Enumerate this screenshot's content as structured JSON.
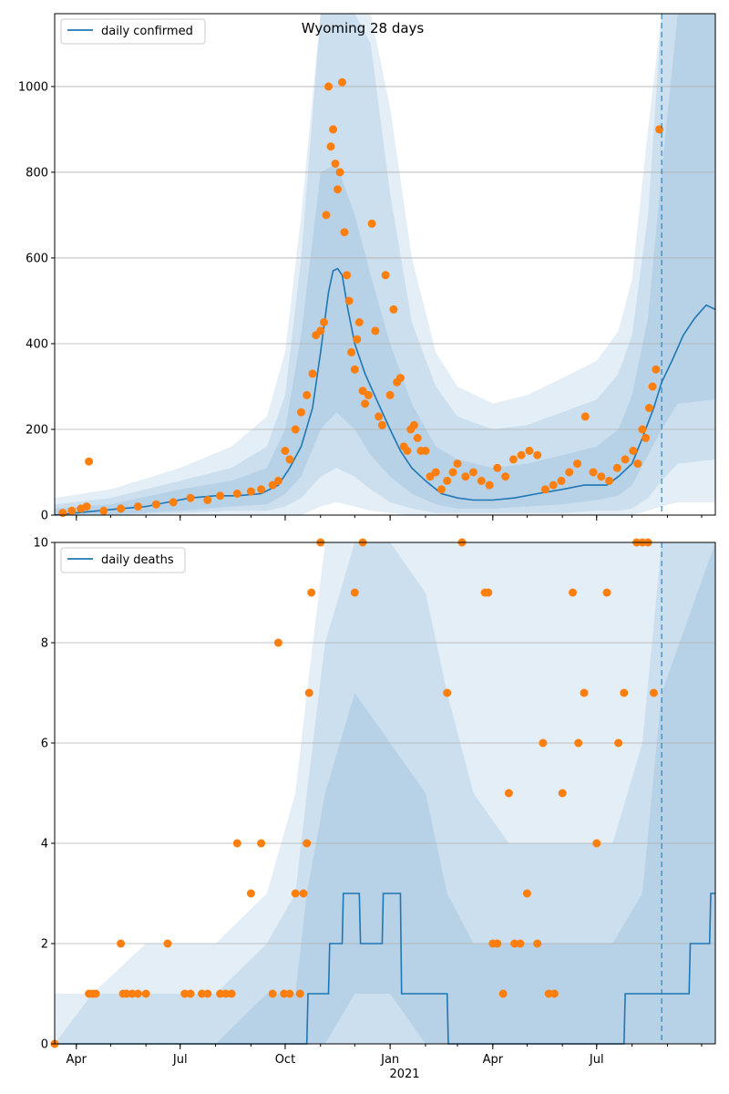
{
  "figure": {
    "title": "Wyoming 28 days",
    "year_label": "2021",
    "colors": {
      "line": "#1f77b4",
      "points": "#ff7f0e",
      "band": "#1f77b4",
      "grid": "#b0b0b0",
      "axis": "#000000"
    }
  },
  "chart_data": [
    {
      "type": "line",
      "panel": "top",
      "legend": "daily confirmed",
      "legend_position": "upper left",
      "grid": "horizontal",
      "x_axis": {
        "type": "date",
        "range": [
          "2020-03-13",
          "2021-10-13"
        ],
        "ticks": [
          "2020-04-01",
          "2020-07-01",
          "2020-10-01",
          "2021-01-01",
          "2021-04-01",
          "2021-07-01"
        ],
        "tick_labels": [
          "Apr",
          "Jul",
          "Oct",
          "Jan",
          "Apr",
          "Jul"
        ],
        "tick_labels_visible": false
      },
      "ylim": [
        0,
        1170
      ],
      "yticks": [
        0,
        200,
        400,
        600,
        800,
        1000
      ],
      "forecast_start": "2021-08-27",
      "series": [
        {
          "name": "daily confirmed",
          "x": [
            "2020-03-13",
            "2020-04-01",
            "2020-04-20",
            "2020-05-10",
            "2020-06-01",
            "2020-06-20",
            "2020-07-10",
            "2020-08-01",
            "2020-08-20",
            "2020-09-10",
            "2020-09-25",
            "2020-10-05",
            "2020-10-15",
            "2020-10-25",
            "2020-11-01",
            "2020-11-08",
            "2020-11-12",
            "2020-11-16",
            "2020-11-20",
            "2020-11-25",
            "2020-12-01",
            "2020-12-10",
            "2020-12-20",
            "2021-01-01",
            "2021-01-10",
            "2021-01-20",
            "2021-02-01",
            "2021-02-15",
            "2021-03-01",
            "2021-03-15",
            "2021-04-01",
            "2021-04-20",
            "2021-05-10",
            "2021-06-01",
            "2021-06-20",
            "2021-07-10",
            "2021-07-20",
            "2021-08-01",
            "2021-08-10",
            "2021-08-20",
            "2021-08-27",
            "2021-09-05",
            "2021-09-15",
            "2021-09-25",
            "2021-10-05",
            "2021-10-13"
          ],
          "y": [
            0,
            5,
            10,
            15,
            20,
            30,
            40,
            45,
            45,
            50,
            70,
            110,
            160,
            250,
            380,
            520,
            570,
            575,
            560,
            480,
            400,
            330,
            270,
            200,
            150,
            110,
            80,
            50,
            40,
            35,
            35,
            40,
            50,
            60,
            70,
            70,
            90,
            120,
            180,
            250,
            310,
            360,
            420,
            460,
            490,
            480
          ]
        }
      ],
      "bands": [
        {
          "label": "widest",
          "x": [
            "2020-03-13",
            "2020-05-01",
            "2020-07-01",
            "2020-08-15",
            "2020-09-15",
            "2020-10-01",
            "2020-10-15",
            "2020-11-01",
            "2020-11-15",
            "2020-12-01",
            "2020-12-15",
            "2021-01-01",
            "2021-01-20",
            "2021-02-10",
            "2021-03-01",
            "2021-04-01",
            "2021-05-01",
            "2021-06-01",
            "2021-07-01",
            "2021-07-20",
            "2021-08-01",
            "2021-08-15",
            "2021-08-27",
            "2021-09-10",
            "2021-10-13"
          ],
          "low": [
            0,
            0,
            0,
            0,
            0,
            0,
            0,
            20,
            30,
            20,
            10,
            5,
            0,
            0,
            0,
            0,
            0,
            0,
            0,
            0,
            0,
            10,
            20,
            30,
            30
          ],
          "high": [
            40,
            60,
            110,
            160,
            230,
            380,
            700,
            1170,
            1170,
            1170,
            1170,
            950,
            600,
            380,
            300,
            260,
            280,
            320,
            360,
            430,
            550,
            900,
            1170,
            1170,
            1170
          ]
        },
        {
          "label": "wide",
          "x": [
            "2020-03-13",
            "2020-05-01",
            "2020-07-01",
            "2020-08-15",
            "2020-09-15",
            "2020-10-01",
            "2020-10-15",
            "2020-11-01",
            "2020-11-15",
            "2020-12-01",
            "2020-12-15",
            "2021-01-01",
            "2021-01-20",
            "2021-02-10",
            "2021-03-01",
            "2021-04-01",
            "2021-05-01",
            "2021-06-01",
            "2021-07-01",
            "2021-07-20",
            "2021-08-01",
            "2021-08-15",
            "2021-08-27",
            "2021-09-10",
            "2021-10-13"
          ],
          "low": [
            0,
            0,
            5,
            10,
            10,
            20,
            40,
            90,
            110,
            90,
            60,
            30,
            15,
            5,
            5,
            5,
            5,
            5,
            10,
            10,
            15,
            40,
            80,
            120,
            130
          ],
          "high": [
            25,
            40,
            80,
            110,
            160,
            280,
            600,
            1170,
            1170,
            1170,
            1100,
            750,
            450,
            300,
            230,
            200,
            210,
            240,
            270,
            330,
            420,
            700,
            1170,
            1170,
            1170
          ]
        },
        {
          "label": "inner",
          "x": [
            "2020-03-13",
            "2020-05-01",
            "2020-07-01",
            "2020-08-15",
            "2020-09-15",
            "2020-10-01",
            "2020-10-15",
            "2020-11-01",
            "2020-11-15",
            "2020-12-01",
            "2020-12-15",
            "2021-01-01",
            "2021-01-20",
            "2021-02-10",
            "2021-03-01",
            "2021-04-01",
            "2021-05-01",
            "2021-06-01",
            "2021-07-01",
            "2021-07-20",
            "2021-08-01",
            "2021-08-15",
            "2021-08-27",
            "2021-09-10",
            "2021-10-13"
          ],
          "low": [
            0,
            2,
            10,
            20,
            25,
            50,
            90,
            200,
            240,
            200,
            140,
            90,
            50,
            25,
            15,
            15,
            20,
            25,
            35,
            45,
            70,
            140,
            200,
            260,
            270
          ],
          "high": [
            15,
            25,
            60,
            80,
            110,
            200,
            420,
            800,
            820,
            700,
            560,
            400,
            260,
            160,
            130,
            110,
            120,
            140,
            160,
            200,
            280,
            460,
            800,
            1170,
            1170
          ]
        }
      ],
      "scatter": {
        "x": [
          "2020-03-20",
          "2020-03-28",
          "2020-04-05",
          "2020-04-10",
          "2020-04-12",
          "2020-04-25",
          "2020-05-10",
          "2020-05-25",
          "2020-06-10",
          "2020-06-25",
          "2020-07-10",
          "2020-07-25",
          "2020-08-05",
          "2020-08-20",
          "2020-09-01",
          "2020-09-10",
          "2020-09-20",
          "2020-09-25",
          "2020-10-01",
          "2020-10-05",
          "2020-10-10",
          "2020-10-15",
          "2020-10-20",
          "2020-10-25",
          "2020-10-28",
          "2020-11-01",
          "2020-11-04",
          "2020-11-06",
          "2020-11-08",
          "2020-11-10",
          "2020-11-12",
          "2020-11-14",
          "2020-11-16",
          "2020-11-18",
          "2020-11-20",
          "2020-11-22",
          "2020-11-24",
          "2020-11-26",
          "2020-11-28",
          "2020-12-01",
          "2020-12-03",
          "2020-12-05",
          "2020-12-08",
          "2020-12-10",
          "2020-12-13",
          "2020-12-16",
          "2020-12-19",
          "2020-12-22",
          "2020-12-25",
          "2020-12-28",
          "2021-01-01",
          "2021-01-04",
          "2021-01-07",
          "2021-01-10",
          "2021-01-13",
          "2021-01-16",
          "2021-01-19",
          "2021-01-22",
          "2021-01-25",
          "2021-01-28",
          "2021-02-01",
          "2021-02-05",
          "2021-02-10",
          "2021-02-15",
          "2021-02-20",
          "2021-02-25",
          "2021-03-01",
          "2021-03-08",
          "2021-03-15",
          "2021-03-22",
          "2021-03-29",
          "2021-04-05",
          "2021-04-12",
          "2021-04-19",
          "2021-04-26",
          "2021-05-03",
          "2021-05-10",
          "2021-05-17",
          "2021-05-24",
          "2021-05-31",
          "2021-06-07",
          "2021-06-14",
          "2021-06-21",
          "2021-06-28",
          "2021-07-05",
          "2021-07-12",
          "2021-07-19",
          "2021-07-26",
          "2021-08-02",
          "2021-08-06",
          "2021-08-10",
          "2021-08-13",
          "2021-08-16",
          "2021-08-19",
          "2021-08-22",
          "2021-08-25"
        ],
        "y": [
          5,
          10,
          15,
          20,
          125,
          10,
          15,
          20,
          25,
          30,
          40,
          35,
          45,
          50,
          55,
          60,
          70,
          80,
          150,
          130,
          200,
          240,
          280,
          330,
          420,
          430,
          450,
          700,
          1000,
          860,
          900,
          820,
          760,
          800,
          1010,
          660,
          560,
          500,
          380,
          340,
          410,
          450,
          290,
          260,
          280,
          680,
          430,
          230,
          210,
          560,
          280,
          480,
          310,
          320,
          160,
          150,
          200,
          210,
          180,
          150,
          150,
          90,
          100,
          60,
          80,
          100,
          120,
          90,
          100,
          80,
          70,
          110,
          90,
          130,
          140,
          150,
          140,
          60,
          70,
          80,
          100,
          120,
          230,
          100,
          90,
          80,
          110,
          130,
          150,
          120,
          200,
          180,
          250,
          300,
          340,
          900
        ]
      }
    },
    {
      "type": "line",
      "panel": "bottom",
      "legend": "daily deaths",
      "legend_position": "upper left",
      "grid": "horizontal",
      "x_axis": {
        "type": "date",
        "range": [
          "2020-03-13",
          "2021-10-13"
        ],
        "ticks": [
          "2020-04-01",
          "2020-07-01",
          "2020-10-01",
          "2021-01-01",
          "2021-04-01",
          "2021-07-01"
        ],
        "tick_labels": [
          "Apr",
          "Jul",
          "Oct",
          "Jan",
          "Apr",
          "Jul"
        ]
      },
      "ylim": [
        0,
        10
      ],
      "yticks": [
        0,
        2,
        4,
        6,
        8,
        10
      ],
      "forecast_start": "2021-08-27",
      "series": [
        {
          "name": "daily deaths",
          "x": [
            "2020-03-13",
            "2020-10-20",
            "2020-10-21",
            "2020-11-08",
            "2020-11-09",
            "2020-11-20",
            "2020-11-21",
            "2020-12-05",
            "2020-12-06",
            "2020-12-25",
            "2020-12-26",
            "2021-01-10",
            "2021-01-11",
            "2021-02-20",
            "2021-02-21",
            "2021-07-25",
            "2021-07-26",
            "2021-08-27",
            "2021-08-28",
            "2021-09-20",
            "2021-09-21",
            "2021-10-08",
            "2021-10-09",
            "2021-10-13"
          ],
          "y": [
            0,
            0,
            1,
            1,
            2,
            2,
            3,
            3,
            2,
            2,
            3,
            3,
            1,
            1,
            0,
            0,
            1,
            1,
            1,
            1,
            2,
            2,
            3,
            3
          ]
        }
      ],
      "bands": [
        {
          "label": "widest",
          "x": [
            "2020-03-13",
            "2020-04-15",
            "2020-06-01",
            "2020-08-01",
            "2020-09-15",
            "2020-10-10",
            "2020-10-20",
            "2020-11-05",
            "2020-12-01",
            "2021-01-01",
            "2021-02-01",
            "2021-02-20",
            "2021-03-15",
            "2021-04-15",
            "2021-06-01",
            "2021-07-15",
            "2021-08-10",
            "2021-08-27",
            "2021-10-13"
          ],
          "low": [
            0,
            0,
            0,
            0,
            0,
            0,
            0,
            0,
            0,
            0,
            0,
            0,
            0,
            0,
            0,
            0,
            0,
            0,
            0
          ],
          "high": [
            1,
            1,
            2,
            2,
            3,
            5,
            7,
            10,
            10,
            10,
            10,
            10,
            10,
            10,
            10,
            10,
            10,
            10,
            10
          ]
        },
        {
          "label": "wide",
          "x": [
            "2020-03-13",
            "2020-04-15",
            "2020-06-01",
            "2020-08-01",
            "2020-09-15",
            "2020-10-10",
            "2020-10-20",
            "2020-11-05",
            "2020-12-01",
            "2021-01-01",
            "2021-02-01",
            "2021-02-20",
            "2021-03-15",
            "2021-04-15",
            "2021-06-01",
            "2021-07-15",
            "2021-08-10",
            "2021-08-27",
            "2021-10-13"
          ],
          "low": [
            0,
            0,
            0,
            0,
            0,
            0,
            0,
            0,
            0,
            0,
            0,
            0,
            0,
            0,
            0,
            0,
            0,
            0,
            0
          ],
          "high": [
            0,
            1,
            1,
            1,
            2,
            3,
            5,
            8,
            10,
            10,
            9,
            7,
            5,
            4,
            4,
            4,
            6,
            10,
            10
          ]
        },
        {
          "label": "inner",
          "x": [
            "2020-03-13",
            "2020-04-15",
            "2020-06-01",
            "2020-08-01",
            "2020-09-15",
            "2020-10-10",
            "2020-10-20",
            "2020-11-05",
            "2020-12-01",
            "2021-01-01",
            "2021-02-01",
            "2021-02-20",
            "2021-03-15",
            "2021-04-15",
            "2021-06-01",
            "2021-07-15",
            "2021-08-10",
            "2021-08-27",
            "2021-10-13"
          ],
          "low": [
            0,
            0,
            0,
            0,
            0,
            0,
            0,
            0,
            1,
            1,
            0,
            0,
            0,
            0,
            0,
            0,
            0,
            0,
            0
          ],
          "high": [
            0,
            0,
            0,
            0,
            1,
            1,
            3,
            5,
            7,
            6,
            5,
            3,
            2,
            2,
            2,
            2,
            3,
            7,
            10
          ]
        }
      ],
      "scatter": {
        "x": [
          "2020-03-13",
          "2020-04-12",
          "2020-04-15",
          "2020-04-18",
          "2020-05-10",
          "2020-05-12",
          "2020-05-15",
          "2020-05-20",
          "2020-05-25",
          "2020-06-01",
          "2020-06-20",
          "2020-07-05",
          "2020-07-10",
          "2020-07-20",
          "2020-07-25",
          "2020-08-05",
          "2020-08-10",
          "2020-08-15",
          "2020-08-20",
          "2020-09-01",
          "2020-09-10",
          "2020-09-20",
          "2020-09-25",
          "2020-09-30",
          "2020-10-05",
          "2020-10-10",
          "2020-10-14",
          "2020-10-17",
          "2020-10-20",
          "2020-10-22",
          "2020-10-24",
          "2020-11-01",
          "2020-12-01",
          "2020-12-08",
          "2021-02-20",
          "2021-03-05",
          "2021-03-25",
          "2021-03-28",
          "2021-04-01",
          "2021-04-05",
          "2021-04-10",
          "2021-04-15",
          "2021-04-20",
          "2021-04-25",
          "2021-05-01",
          "2021-05-10",
          "2021-05-15",
          "2021-05-20",
          "2021-05-25",
          "2021-06-01",
          "2021-06-10",
          "2021-06-15",
          "2021-06-20",
          "2021-07-01",
          "2021-07-10",
          "2021-07-20",
          "2021-07-25",
          "2021-08-05",
          "2021-08-10",
          "2021-08-15",
          "2021-08-20"
        ],
        "y": [
          0,
          1,
          1,
          1,
          2,
          1,
          1,
          1,
          1,
          1,
          2,
          1,
          1,
          1,
          1,
          1,
          1,
          1,
          4,
          3,
          4,
          1,
          8,
          1,
          1,
          3,
          1,
          3,
          4,
          7,
          9,
          10,
          9,
          10,
          7,
          10,
          9,
          9,
          2,
          2,
          1,
          5,
          2,
          2,
          3,
          2,
          6,
          1,
          1,
          5,
          9,
          6,
          7,
          4,
          9,
          6,
          7,
          10,
          10,
          10,
          7
        ]
      }
    }
  ]
}
